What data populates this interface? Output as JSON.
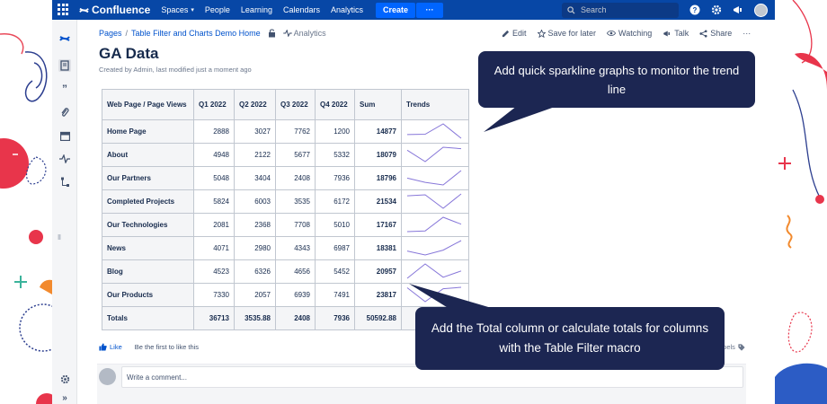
{
  "topnav": {
    "app_name": "Confluence",
    "items": [
      "Spaces",
      "People",
      "Learning",
      "Calendars",
      "Analytics"
    ],
    "create_label": "Create",
    "more_label": "···",
    "search_placeholder": "Search",
    "bg_color": "#0747a6"
  },
  "breadcrumb": {
    "root": "Pages",
    "sep": "/",
    "parent": "Table Filter and Charts Demo Home",
    "analytics": "Analytics"
  },
  "page_actions": [
    "Edit",
    "Save for later",
    "Watching",
    "Talk",
    "Share",
    "···"
  ],
  "page": {
    "title": "GA Data",
    "byline": "Created by Admin, last modified just a moment ago"
  },
  "table": {
    "headers": [
      "Web Page / Page Views",
      "Q1 2022",
      "Q2 2022",
      "Q3 2022",
      "Q4 2022",
      "Sum",
      "Trends"
    ],
    "rows": [
      {
        "name": "Home Page",
        "q1": "2888",
        "q2": "3027",
        "q3": "7762",
        "q4": "1200",
        "sum": "14877",
        "trend": [
          2888,
          3027,
          7762,
          1200
        ]
      },
      {
        "name": "About",
        "q1": "4948",
        "q2": "2122",
        "q3": "5677",
        "q4": "5332",
        "sum": "18079",
        "trend": [
          4948,
          2122,
          5677,
          5332
        ]
      },
      {
        "name": "Our Partners",
        "q1": "5048",
        "q2": "3404",
        "q3": "2408",
        "q4": "7936",
        "sum": "18796",
        "trend": [
          5048,
          3404,
          2408,
          7936
        ]
      },
      {
        "name": "Completed Projects",
        "q1": "5824",
        "q2": "6003",
        "q3": "3535",
        "q4": "6172",
        "sum": "21534",
        "trend": [
          5824,
          6003,
          3535,
          6172
        ]
      },
      {
        "name": "Our Technologies",
        "q1": "2081",
        "q2": "2368",
        "q3": "7708",
        "q4": "5010",
        "sum": "17167",
        "trend": [
          2081,
          2368,
          7708,
          5010
        ]
      },
      {
        "name": "News",
        "q1": "4071",
        "q2": "2980",
        "q3": "4343",
        "q4": "6987",
        "sum": "18381",
        "trend": [
          4071,
          2980,
          4343,
          6987
        ]
      },
      {
        "name": "Blog",
        "q1": "4523",
        "q2": "6326",
        "q3": "4656",
        "q4": "5452",
        "sum": "20957",
        "trend": [
          4523,
          6326,
          4656,
          5452
        ]
      },
      {
        "name": "Our Products",
        "q1": "7330",
        "q2": "2057",
        "q3": "6939",
        "q4": "7491",
        "sum": "23817",
        "trend": [
          7330,
          2057,
          6939,
          7491
        ]
      }
    ],
    "totals": {
      "name": "Totals",
      "q1": "36713",
      "q2": "3535.88",
      "q3": "2408",
      "q4": "7936",
      "sum": "50592.88"
    },
    "sparkline_color": "#8777d9"
  },
  "like": {
    "label": "Like",
    "first": "Be the first to like this",
    "labels": "abels"
  },
  "comment": {
    "placeholder": "Write a comment..."
  },
  "callouts": {
    "sparkline": "Add quick sparkline graphs to monitor the trend line",
    "totals": "Add the Total column or calculate totals for columns with the Table Filter macro",
    "bg_color": "#1c2652"
  }
}
